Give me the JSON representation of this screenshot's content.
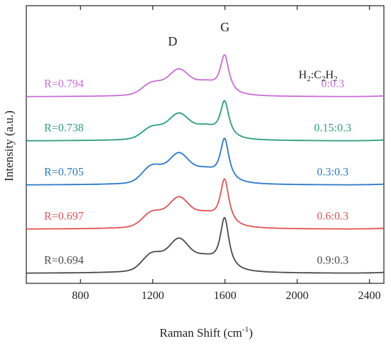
{
  "chart_data": {
    "type": "line",
    "title": "",
    "xlabel": "Raman Shift (cm",
    "xlabel_sup": "-1",
    "xlabel_suffix": ")",
    "ylabel": "Intensity (a.u.)",
    "xlim": [
      500,
      2480
    ],
    "x_ticks": [
      800,
      1200,
      1600,
      2000,
      2400
    ],
    "x_tick_labels": [
      "800",
      "1200",
      "1600",
      "2000",
      "2400"
    ],
    "y_tick_labels": false,
    "grid": false,
    "legend_title": {
      "parts": [
        "H",
        "2",
        ":C",
        "2",
        "H",
        "2"
      ],
      "subscripts": [
        false,
        true,
        false,
        true,
        false,
        true
      ]
    },
    "peak_labels": [
      {
        "text": "D",
        "x": 1350
      },
      {
        "text": "G",
        "x": 1600
      }
    ],
    "series": [
      {
        "name": "0:0.3",
        "r_label": "R=0.794",
        "color": "#c86dd7",
        "baseline": 4.0,
        "d_height": 0.62,
        "g_height": 0.88,
        "shoulder": 0.2
      },
      {
        "name": "0.15:0.3",
        "r_label": "R=0.738",
        "color": "#2a9d7a",
        "baseline": 3.0,
        "d_height": 0.62,
        "g_height": 0.84,
        "shoulder": 0.2
      },
      {
        "name": "0.3:0.3",
        "r_label": "R=0.705",
        "color": "#2a78c8",
        "baseline": 2.0,
        "d_height": 0.72,
        "g_height": 0.98,
        "shoulder": 0.3
      },
      {
        "name": "0.6:0.3",
        "r_label": "R=0.697",
        "color": "#e05353",
        "baseline": 1.0,
        "d_height": 0.72,
        "g_height": 1.06,
        "shoulder": 0.25
      },
      {
        "name": "0.9:0.3",
        "r_label": "R=0.694",
        "color": "#4a4a4a",
        "baseline": 0.0,
        "d_height": 0.78,
        "g_height": 1.18,
        "shoulder": 0.3
      }
    ]
  }
}
